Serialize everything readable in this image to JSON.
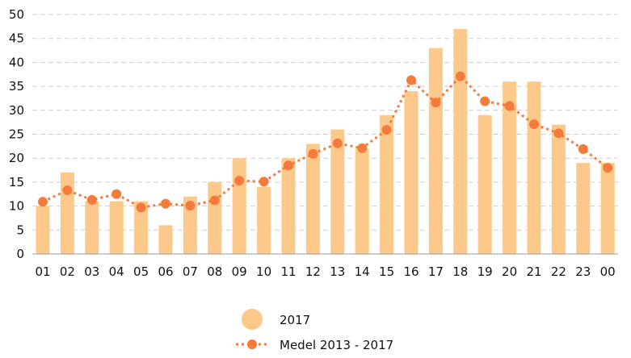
{
  "chart_data": {
    "type": "bar",
    "categories": [
      "01",
      "02",
      "03",
      "04",
      "05",
      "06",
      "07",
      "08",
      "09",
      "10",
      "11",
      "12",
      "13",
      "14",
      "15",
      "16",
      "17",
      "18",
      "19",
      "20",
      "21",
      "22",
      "23",
      "00"
    ],
    "series": [
      {
        "name": "2017",
        "kind": "bar",
        "color": "#fdc98a",
        "values": [
          10,
          17,
          11,
          11,
          11,
          6,
          12,
          15,
          20,
          14,
          20,
          23,
          26,
          22,
          29,
          34,
          43,
          47,
          29,
          36,
          36,
          27,
          19,
          19
        ]
      },
      {
        "name": "Medel 2013 - 2017",
        "kind": "line",
        "style": "dotted-with-markers",
        "color": "#f47b3b",
        "values": [
          10.9,
          13.3,
          11.3,
          12.5,
          9.7,
          10.5,
          10.1,
          11.2,
          15.3,
          15.1,
          18.5,
          20.9,
          23.1,
          22.1,
          25.9,
          36.3,
          31.6,
          37.1,
          31.9,
          30.9,
          27.1,
          25.2,
          21.9,
          18.0
        ]
      }
    ],
    "y_ticks": [
      "0",
      "5",
      "10",
      "15",
      "20",
      "25",
      "30",
      "35",
      "40",
      "45",
      "50"
    ],
    "ylim": [
      0,
      50
    ],
    "grid": true,
    "legend_position": "bottom-center",
    "title": "",
    "xlabel": "",
    "ylabel": ""
  }
}
